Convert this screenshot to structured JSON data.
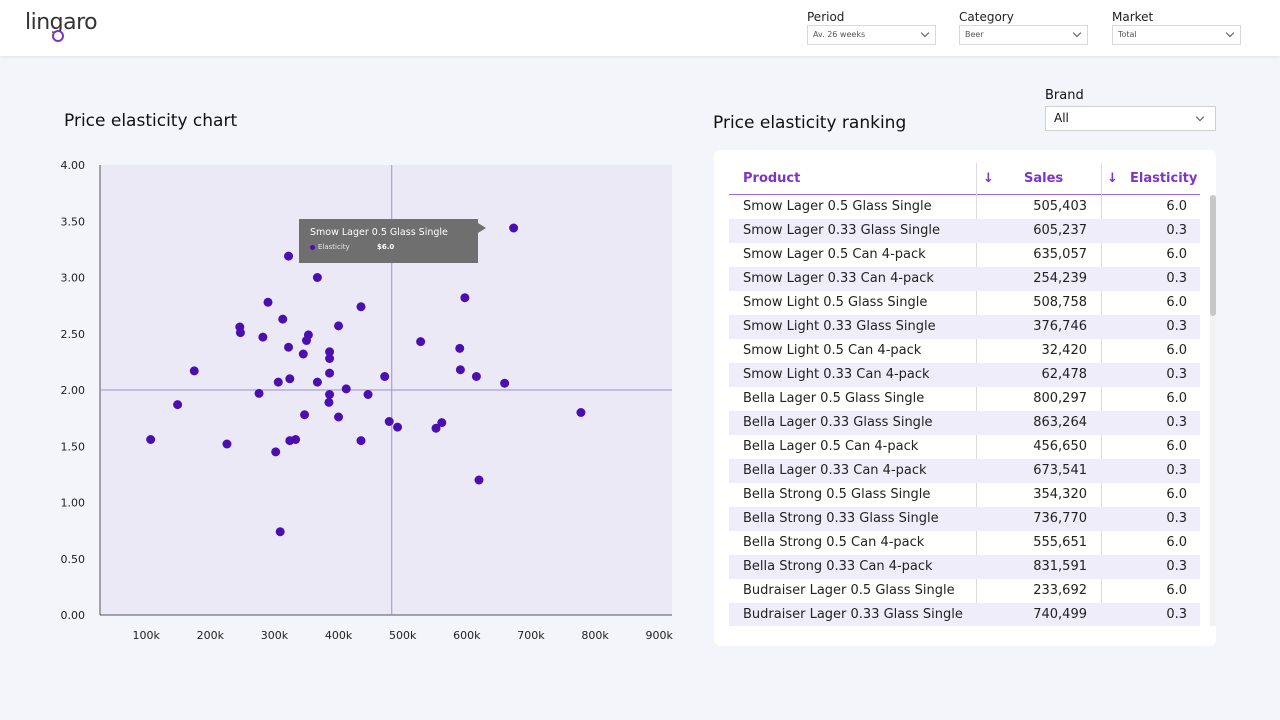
{
  "app": {
    "logo_text": "lingaro"
  },
  "filters": [
    {
      "label": "Period",
      "value": "Av. 26 weeks"
    },
    {
      "label": "Category",
      "value": "Beer"
    },
    {
      "label": "Market",
      "value": "Total"
    }
  ],
  "chart": {
    "title": "Price elasticity chart"
  },
  "ranking": {
    "title": "Price elasticity ranking",
    "brand_label": "Brand",
    "brand_value": "All",
    "columns": {
      "product": "Product",
      "sales": "Sales",
      "elasticity": "Elasticity",
      "sort_icon": "↓"
    },
    "rows": [
      {
        "product": "Smow Lager 0.5 Glass Single",
        "sales": "505,403",
        "elasticity": "6.0"
      },
      {
        "product": "Smow Lager 0.33 Glass Single",
        "sales": "605,237",
        "elasticity": "0.3"
      },
      {
        "product": "Smow Lager 0.5 Can 4-pack",
        "sales": "635,057",
        "elasticity": "6.0"
      },
      {
        "product": "Smow Lager 0.33 Can 4-pack",
        "sales": "254,239",
        "elasticity": "0.3"
      },
      {
        "product": "Smow Light 0.5 Glass Single",
        "sales": "508,758",
        "elasticity": "6.0"
      },
      {
        "product": "Smow Light 0.33 Glass Single",
        "sales": "376,746",
        "elasticity": "0.3"
      },
      {
        "product": "Smow Light 0.5 Can 4-pack",
        "sales": "32,420",
        "elasticity": "6.0"
      },
      {
        "product": "Smow Light 0.33 Can 4-pack",
        "sales": "62,478",
        "elasticity": "0.3"
      },
      {
        "product": "Bella Lager 0.5 Glass Single",
        "sales": "800,297",
        "elasticity": "6.0"
      },
      {
        "product": "Bella Lager 0.33 Glass Single",
        "sales": "863,264",
        "elasticity": "0.3"
      },
      {
        "product": "Bella Lager 0.5 Can 4-pack",
        "sales": "456,650",
        "elasticity": "6.0"
      },
      {
        "product": "Bella Lager 0.33 Can 4-pack",
        "sales": "673,541",
        "elasticity": "0.3"
      },
      {
        "product": "Bella Strong 0.5 Glass Single",
        "sales": "354,320",
        "elasticity": "6.0"
      },
      {
        "product": "Bella Strong 0.33 Glass Single",
        "sales": "736,770",
        "elasticity": "0.3"
      },
      {
        "product": "Bella Strong 0.5 Can 4-pack",
        "sales": "555,651",
        "elasticity": "6.0"
      },
      {
        "product": "Bella Strong 0.33 Can 4-pack",
        "sales": "831,591",
        "elasticity": "0.3"
      },
      {
        "product": "Budraiser Lager 0.5 Glass Single",
        "sales": "233,692",
        "elasticity": "6.0"
      },
      {
        "product": "Budraiser Lager 0.33 Glass Single",
        "sales": "740,499",
        "elasticity": "0.3"
      }
    ]
  },
  "tooltip": {
    "title": "Smow Lager 0.5 Glass Single",
    "key": "Elasticity",
    "value": "$6.0"
  },
  "colors": {
    "accent": "#7b35c9",
    "point": "#4b0fb0",
    "plot_bg": "#ece9f6"
  },
  "chart_data": {
    "type": "scatter",
    "title": "Price elasticity chart",
    "xlabel": "",
    "ylabel": "",
    "xlim": [
      28000,
      920000
    ],
    "ylim": [
      0,
      4
    ],
    "x_ticks": [
      100000,
      200000,
      300000,
      400000,
      500000,
      600000,
      700000,
      800000,
      900000
    ],
    "x_tick_labels": [
      "100k",
      "200k",
      "300k",
      "400k",
      "500k",
      "600k",
      "700k",
      "800k",
      "900k"
    ],
    "y_ticks": [
      0,
      0.5,
      1,
      1.5,
      2,
      2.5,
      3,
      3.5,
      4
    ],
    "y_tick_labels": [
      "0.00",
      "0.50",
      "1.00",
      "1.50",
      "2.00",
      "2.50",
      "3.00",
      "3.50",
      "4.00"
    ],
    "reference_lines": {
      "x": 483000,
      "y": 2.0
    },
    "x": [
      673000,
      322000,
      367000,
      597000,
      290000,
      435000,
      313000,
      246000,
      247000,
      400000,
      353000,
      282000,
      350000,
      322000,
      528000,
      386000,
      589000,
      345000,
      386000,
      175000,
      386000,
      590000,
      472000,
      615000,
      324000,
      306000,
      367000,
      659000,
      412000,
      276000,
      446000,
      386000,
      385000,
      149000,
      347000,
      400000,
      778000,
      479000,
      561000,
      492000,
      552000,
      107000,
      333000,
      324000,
      435000,
      226000,
      302000,
      619000,
      309000
    ],
    "y": [
      3.44,
      3.19,
      3.0,
      2.82,
      2.78,
      2.74,
      2.63,
      2.56,
      2.51,
      2.57,
      2.49,
      2.47,
      2.44,
      2.38,
      2.43,
      2.34,
      2.37,
      2.32,
      2.28,
      2.17,
      2.15,
      2.18,
      2.12,
      2.12,
      2.1,
      2.07,
      2.07,
      2.06,
      2.01,
      1.97,
      1.96,
      1.96,
      1.89,
      1.87,
      1.78,
      1.76,
      1.8,
      1.72,
      1.71,
      1.67,
      1.66,
      1.56,
      1.56,
      1.55,
      1.55,
      1.52,
      1.45,
      1.2,
      0.74
    ]
  }
}
